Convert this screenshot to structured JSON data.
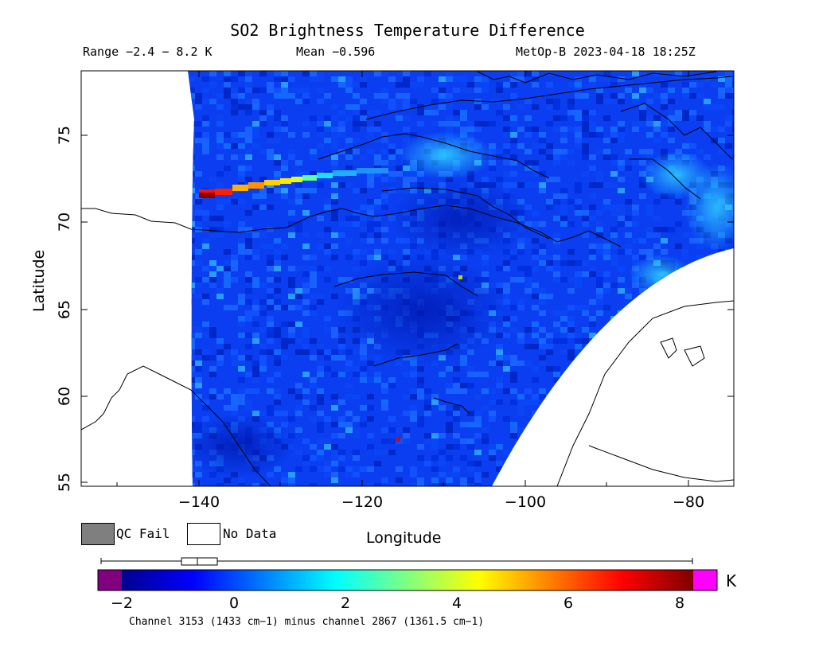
{
  "header": {
    "title": "SO2 Brightness Temperature Difference",
    "range_text": "Range −2.4 − 8.2 K",
    "mean_text": "Mean −0.596",
    "satellite_text": "MetOp-B 2023-04-18 18:25Z"
  },
  "map": {
    "xlabel": "Longitude",
    "ylabel": "Latitude",
    "lon_range": [
      -155,
      -75
    ],
    "lat_range": [
      54.5,
      78.5
    ],
    "x_ticks": [
      "−140",
      "−120",
      "−100",
      "−80"
    ],
    "y_ticks": [
      "55",
      "60",
      "65",
      "70",
      "75"
    ]
  },
  "legend": {
    "qc_fail_label": "QC Fail",
    "no_data_label": "No Data",
    "qc_fail_color": "#7f7f7f",
    "no_data_color": "#ffffff"
  },
  "colorbar": {
    "unit": "K",
    "ticks": [
      "−2",
      "0",
      "2",
      "4",
      "6",
      "8"
    ],
    "range": [
      -2.5,
      8.7
    ],
    "under_color": "#800080",
    "over_color": "#ff00ff",
    "colormap": "jet",
    "footnote": "Channel 3153 (1433 cm−1) minus channel 2867 (1361.5 cm−1)"
  },
  "colors": {
    "background_blue": "#0a3ef0",
    "plume_peak": "#8b0000"
  }
}
